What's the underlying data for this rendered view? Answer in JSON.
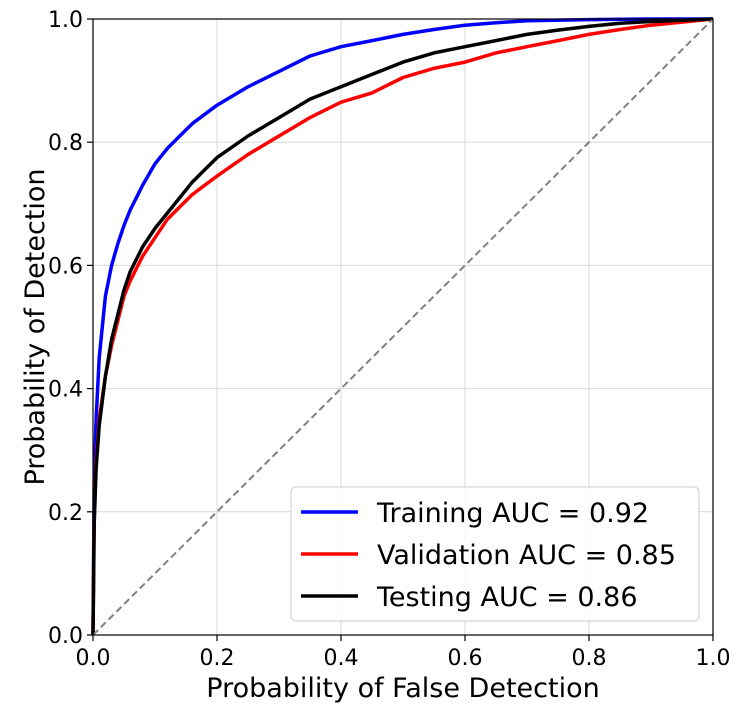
{
  "chart_data": {
    "type": "line",
    "title": "",
    "xlabel": "Probability of False Detection",
    "ylabel": "Probability of Detection",
    "xlim": [
      0,
      1
    ],
    "ylim": [
      0,
      1
    ],
    "xticks": [
      "0.0",
      "0.2",
      "0.4",
      "0.6",
      "0.8",
      "1.0"
    ],
    "yticks": [
      "0.0",
      "0.2",
      "0.4",
      "0.6",
      "0.8",
      "1.0"
    ],
    "grid": true,
    "legend_position": "lower-right",
    "series": [
      {
        "name": "Training AUC = 0.92",
        "color": "#0000ff",
        "x": [
          0,
          0.002,
          0.005,
          0.01,
          0.02,
          0.03,
          0.04,
          0.05,
          0.06,
          0.08,
          0.1,
          0.12,
          0.14,
          0.16,
          0.2,
          0.25,
          0.3,
          0.35,
          0.4,
          0.45,
          0.5,
          0.55,
          0.6,
          0.65,
          0.7,
          0.8,
          0.9,
          1.0
        ],
        "y": [
          0,
          0.25,
          0.35,
          0.45,
          0.55,
          0.6,
          0.635,
          0.665,
          0.69,
          0.73,
          0.765,
          0.79,
          0.81,
          0.83,
          0.86,
          0.89,
          0.915,
          0.94,
          0.955,
          0.965,
          0.975,
          0.983,
          0.99,
          0.994,
          0.997,
          0.999,
          1.0,
          1.0
        ]
      },
      {
        "name": "Validation AUC = 0.85",
        "color": "#ff0000",
        "x": [
          0,
          0.002,
          0.005,
          0.01,
          0.02,
          0.03,
          0.04,
          0.05,
          0.06,
          0.08,
          0.1,
          0.12,
          0.14,
          0.16,
          0.18,
          0.2,
          0.25,
          0.3,
          0.35,
          0.4,
          0.45,
          0.5,
          0.55,
          0.6,
          0.65,
          0.7,
          0.75,
          0.8,
          0.85,
          0.9,
          0.95,
          1.0
        ],
        "y": [
          0,
          0.2,
          0.28,
          0.35,
          0.42,
          0.47,
          0.51,
          0.55,
          0.575,
          0.615,
          0.645,
          0.675,
          0.695,
          0.715,
          0.73,
          0.745,
          0.78,
          0.81,
          0.84,
          0.865,
          0.88,
          0.905,
          0.92,
          0.93,
          0.945,
          0.955,
          0.965,
          0.975,
          0.983,
          0.99,
          0.995,
          1.0
        ]
      },
      {
        "name": "Testing AUC = 0.86",
        "color": "#000000",
        "x": [
          0,
          0.002,
          0.005,
          0.01,
          0.02,
          0.03,
          0.04,
          0.05,
          0.06,
          0.08,
          0.1,
          0.12,
          0.14,
          0.16,
          0.18,
          0.2,
          0.25,
          0.3,
          0.35,
          0.4,
          0.45,
          0.5,
          0.55,
          0.6,
          0.65,
          0.7,
          0.75,
          0.8,
          0.85,
          0.9,
          0.95,
          1.0
        ],
        "y": [
          0,
          0.18,
          0.27,
          0.34,
          0.42,
          0.48,
          0.52,
          0.56,
          0.59,
          0.63,
          0.66,
          0.685,
          0.71,
          0.735,
          0.755,
          0.775,
          0.81,
          0.84,
          0.87,
          0.89,
          0.91,
          0.93,
          0.945,
          0.955,
          0.965,
          0.975,
          0.982,
          0.988,
          0.993,
          0.996,
          0.998,
          1.0
        ]
      },
      {
        "name": "",
        "color": "#808080",
        "dashed": true,
        "x": [
          0,
          1
        ],
        "y": [
          0,
          1
        ]
      }
    ]
  }
}
